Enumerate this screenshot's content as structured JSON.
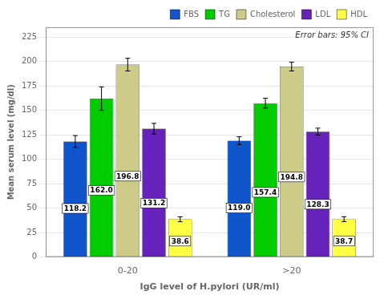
{
  "chart_data": {
    "type": "bar",
    "xlabel": "IgG level of H.pylori (UR/ml)",
    "ylabel": "Mean serum level (mg/dl)",
    "annotations": [
      "Error bars: 95% CI"
    ],
    "categories": [
      "0-20",
      ">20"
    ],
    "series": [
      {
        "name": "FBS",
        "color": "#1155cc",
        "values": [
          118.2,
          119.0
        ],
        "value_labels": [
          "118.2",
          "119.0"
        ],
        "errors": [
          6.0,
          4.0
        ]
      },
      {
        "name": "TG",
        "color": "#00cc00",
        "values": [
          162.0,
          157.4
        ],
        "value_labels": [
          "162.0",
          "157.4"
        ],
        "errors": [
          12.0,
          5.0
        ]
      },
      {
        "name": "Cholesterol",
        "color": "#cccc88",
        "values": [
          196.8,
          194.8
        ],
        "value_labels": [
          "196.8",
          "194.8"
        ],
        "errors": [
          6.5,
          4.5
        ]
      },
      {
        "name": "LDL",
        "color": "#6622bb",
        "values": [
          131.2,
          128.3
        ],
        "value_labels": [
          "131.2",
          "128.3"
        ],
        "errors": [
          5.5,
          3.5
        ]
      },
      {
        "name": "HDL",
        "color": "#ffff44",
        "values": [
          38.6,
          38.7
        ],
        "value_labels": [
          "38.6",
          "38.7"
        ],
        "errors": [
          2.5,
          2.5
        ]
      }
    ],
    "ylim": [
      0,
      235
    ],
    "yticks": [
      0,
      25,
      50,
      75,
      100,
      125,
      150,
      175,
      200,
      225
    ],
    "grid": true,
    "legend": "upper right",
    "data_labels": true
  }
}
